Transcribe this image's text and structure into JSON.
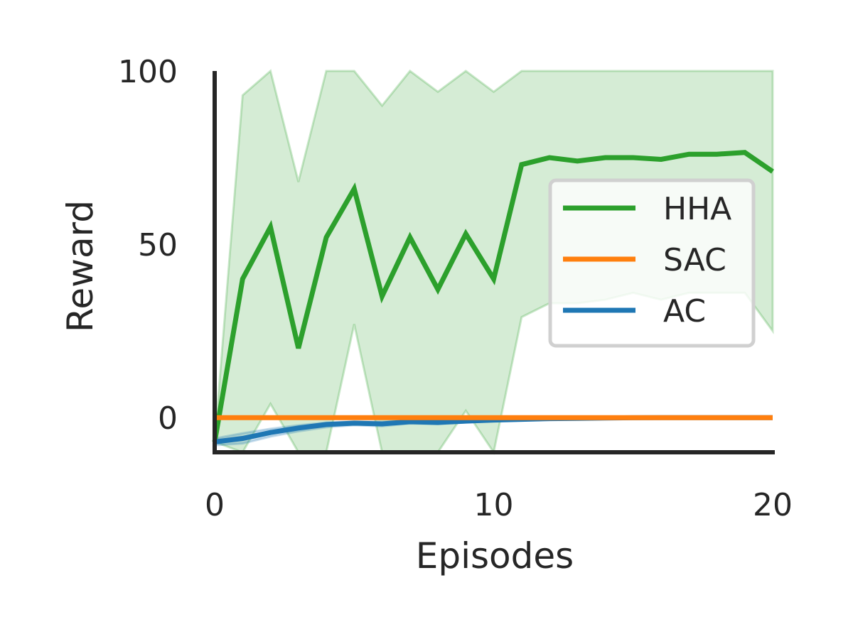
{
  "chart_data": {
    "type": "line",
    "xlabel": "Episodes",
    "ylabel": "Reward",
    "xlim": [
      0,
      20
    ],
    "ylim": [
      -10,
      100
    ],
    "xticks": [
      0,
      10,
      20
    ],
    "yticks": [
      0,
      50,
      100
    ],
    "xtick_labels": [
      "0",
      "10",
      "20"
    ],
    "ytick_labels": [
      "0",
      "50",
      "100"
    ],
    "grid": false,
    "legend_position": "center-right",
    "x": [
      0,
      1,
      2,
      3,
      4,
      5,
      6,
      7,
      8,
      9,
      10,
      11,
      12,
      13,
      14,
      15,
      16,
      17,
      18,
      19,
      20
    ],
    "series": [
      {
        "name": "HHA",
        "color": "#2ca02c",
        "values": [
          -7,
          40,
          55,
          20,
          52,
          66,
          35,
          52,
          37,
          53,
          40,
          73,
          75,
          74,
          75,
          75,
          74.5,
          76,
          76,
          76.5,
          71
        ],
        "band_upper": [
          -7,
          93,
          100,
          68,
          100,
          100,
          90,
          100,
          94,
          100,
          94,
          100,
          100,
          100,
          100,
          100,
          100,
          100,
          100,
          100,
          100
        ],
        "band_lower": [
          -7,
          -10,
          4,
          -10,
          -10,
          27,
          -10,
          -10,
          -10,
          2,
          -10,
          29,
          33,
          33,
          34,
          36,
          34,
          36,
          36,
          36,
          25
        ]
      },
      {
        "name": "SAC",
        "color": "#ff7f0e",
        "values": [
          0,
          0,
          0,
          0,
          0,
          0,
          0,
          0,
          0,
          0,
          0,
          0,
          0,
          0,
          0,
          0,
          0,
          0,
          0,
          0,
          0
        ]
      },
      {
        "name": "AC",
        "color": "#1f77b4",
        "values": [
          -7,
          -6,
          -4.3,
          -3,
          -2,
          -1.6,
          -1.8,
          -1.2,
          -1.4,
          -1,
          -0.7,
          -0.5,
          -0.3,
          -0.2,
          -0.1,
          -0.05,
          0,
          0,
          0,
          0,
          0
        ],
        "band_upper": [
          -6,
          -4.5,
          -3.2,
          -2.2,
          -1.4,
          -1.1,
          -1.2,
          -0.8,
          -0.9,
          -0.6,
          -0.4,
          -0.3,
          -0.1,
          0,
          0,
          0,
          0,
          0,
          0,
          0,
          0
        ],
        "band_lower": [
          -8,
          -7.5,
          -5.5,
          -4,
          -2.8,
          -2.2,
          -2.5,
          -1.7,
          -1.9,
          -1.4,
          -1,
          -0.8,
          -0.5,
          -0.4,
          -0.2,
          -0.1,
          0,
          0,
          0,
          0,
          0
        ]
      }
    ]
  }
}
